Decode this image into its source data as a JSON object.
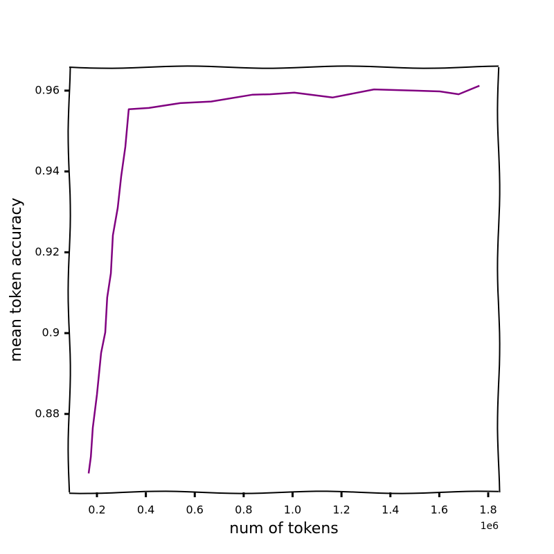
{
  "chart_data": {
    "type": "line",
    "xlabel": "num of tokens",
    "ylabel": "mean token accuracy",
    "x_offset_label": "1e6",
    "x": [
      0.166,
      0.175,
      0.183,
      0.2,
      0.217,
      0.234,
      0.242,
      0.257,
      0.265,
      0.285,
      0.299,
      0.316,
      0.33,
      0.412,
      0.54,
      0.667,
      0.837,
      0.908,
      1.007,
      1.163,
      1.333,
      1.503,
      1.602,
      1.679,
      1.764
    ],
    "values": [
      0.8653,
      0.8694,
      0.8766,
      0.8848,
      0.8951,
      0.9002,
      0.9088,
      0.9148,
      0.9242,
      0.931,
      0.9388,
      0.9461,
      0.9554,
      0.9557,
      0.9569,
      0.9573,
      0.959,
      0.9591,
      0.9595,
      0.9583,
      0.9603,
      0.96,
      0.9598,
      0.9591,
      0.9612
    ],
    "color": "#800080",
    "xlim": [
      0.0867,
      1.8425
    ],
    "ylim": [
      0.8606,
      0.9658
    ],
    "xticks": [
      0.2,
      0.4,
      0.6,
      0.8,
      {
        "value": 1,
        "label": "1.0"
      },
      1.2,
      1.4,
      1.6,
      1.8
    ],
    "yticks": [
      0.88,
      0.9,
      0.92,
      0.94,
      0.96
    ]
  }
}
